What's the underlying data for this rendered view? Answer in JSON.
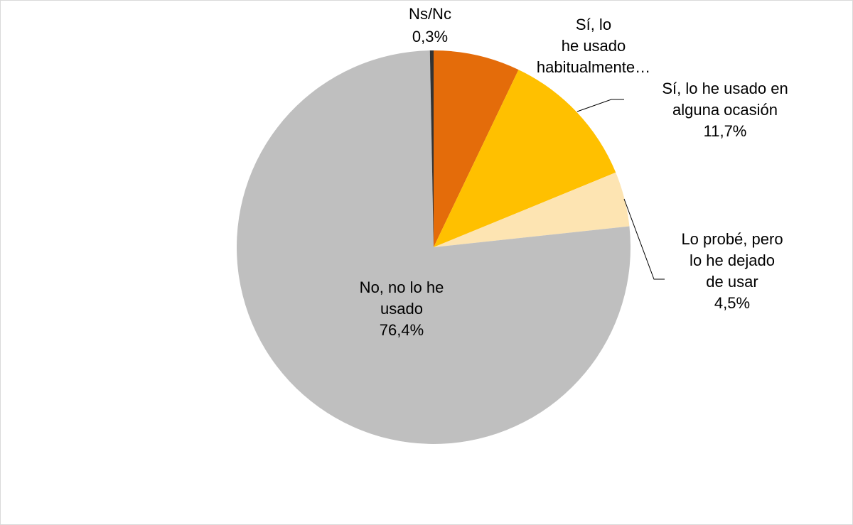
{
  "chart_data": {
    "type": "pie",
    "categories": [
      "Sí, lo\nhe usado\nhabitualmente…",
      "Sí, lo he usado en\nalguna ocasión",
      "Lo probé, pero\nlo he dejado\nde usar",
      "No, no lo he\nusado",
      "Ns/Nc"
    ],
    "values": [
      7.1,
      11.7,
      4.5,
      76.4,
      0.3
    ],
    "value_labels": [
      null,
      "11,7%",
      "4,5%",
      "76,4%",
      "0,3%"
    ],
    "colors": [
      "#E46C0A",
      "#FFC000",
      "#FDE4B2",
      "#BFBFBF",
      "#333333"
    ]
  }
}
